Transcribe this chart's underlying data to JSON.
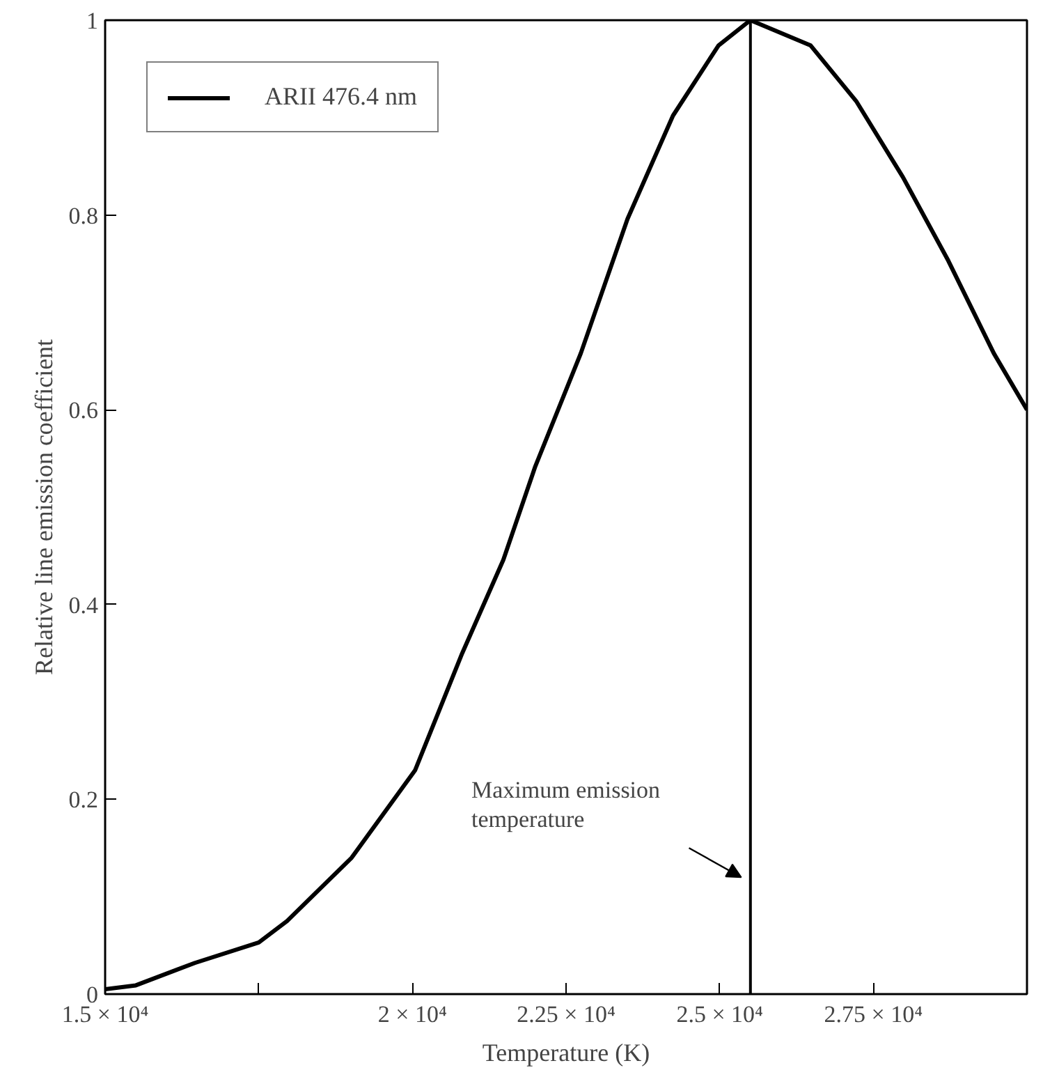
{
  "chart_data": {
    "type": "line",
    "xlabel": "Temperature (K)",
    "ylabel": "Relative line emission coefficient",
    "x": [
      15000,
      15500,
      16460,
      17500,
      17960,
      19010,
      20045,
      20810,
      21480,
      22000,
      22740,
      23500,
      24240,
      24980,
      25500,
      26480,
      27220,
      27980,
      28720,
      29460,
      30000
    ],
    "series": [
      {
        "name": "ARII 476.4 nm",
        "color": "#000000",
        "values": [
          0.005,
          0.009,
          0.032,
          0.053,
          0.075,
          0.14,
          0.23,
          0.35,
          0.446,
          0.542,
          0.658,
          0.796,
          0.902,
          0.974,
          1.0,
          0.974,
          0.917,
          0.839,
          0.753,
          0.658,
          0.6
        ]
      }
    ],
    "xlim": [
      15000,
      30000
    ],
    "xticks": [
      {
        "value": 15000,
        "label": "1.5 × 10⁴"
      },
      {
        "value": 17500,
        "label": null
      },
      {
        "value": 20000,
        "label": "2 × 10⁴"
      },
      {
        "value": 22500,
        "label": "2.25 × 10⁴"
      },
      {
        "value": 25000,
        "label": "2.5 × 10⁴"
      },
      {
        "value": 27500,
        "label": "2.75 × 10⁴"
      }
    ],
    "ylim": [
      0,
      1
    ],
    "yticks": [
      0,
      0.2,
      0.4,
      0.6,
      0.8,
      1
    ],
    "ref_lines": [
      {
        "axis": "x",
        "value": 25500,
        "color": "#000000"
      }
    ],
    "annotations": [
      "Maximum emission\ntemperature"
    ],
    "legend": "top left",
    "grid": false,
    "marker": "none",
    "line_style": "solid"
  }
}
